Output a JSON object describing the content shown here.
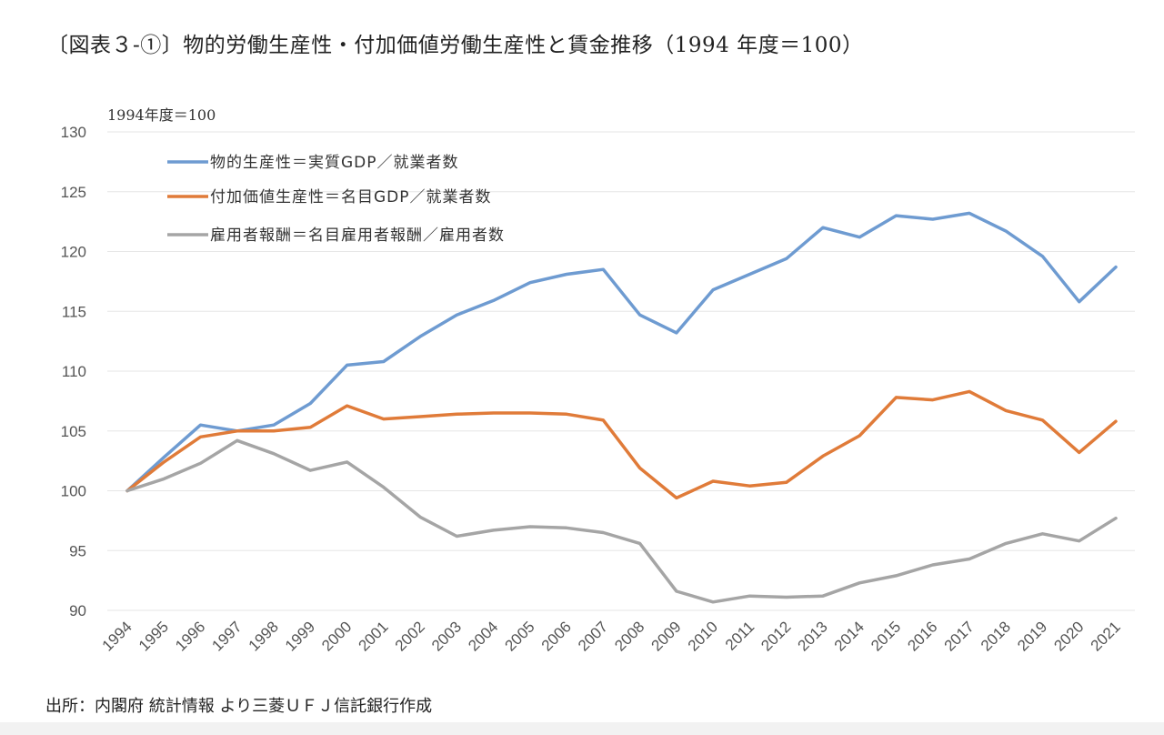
{
  "title": "〔図表３‐①〕物的労働生産性・付加価値労働生産性と賃金推移（1994 年度＝100）",
  "source": "出所：内閣府 統計情報 より三菱ＵＦＪ信託銀行作成",
  "chart_data": {
    "type": "line",
    "unit_label": "1994年度＝100",
    "ylim": [
      90,
      130
    ],
    "yticks": [
      90,
      95,
      100,
      105,
      110,
      115,
      120,
      125,
      130
    ],
    "grid": true,
    "legend_placement": "top-left",
    "x": [
      "1994",
      "1995",
      "1996",
      "1997",
      "1998",
      "1999",
      "2000",
      "2001",
      "2002",
      "2003",
      "2004",
      "2005",
      "2006",
      "2007",
      "2008",
      "2009",
      "2010",
      "2011",
      "2012",
      "2013",
      "2014",
      "2015",
      "2016",
      "2017",
      "2018",
      "2019",
      "2020",
      "2021"
    ],
    "series": [
      {
        "name": "物的生産性＝実質GDP／就業者数",
        "color": "#6e9bd1",
        "values": [
          100,
          102.8,
          105.5,
          105.0,
          105.5,
          107.3,
          110.5,
          110.8,
          112.9,
          114.7,
          115.9,
          117.4,
          118.1,
          118.5,
          114.7,
          113.2,
          116.8,
          118.1,
          119.4,
          122.0,
          121.2,
          123.0,
          122.7,
          123.2,
          121.7,
          119.6,
          115.8,
          118.7
        ]
      },
      {
        "name": "付加価値生産性＝名目GDP／就業者数",
        "color": "#e07b39",
        "values": [
          100,
          102.4,
          104.5,
          105.0,
          105.0,
          105.3,
          107.1,
          106.0,
          106.2,
          106.4,
          106.5,
          106.5,
          106.4,
          105.9,
          101.9,
          99.4,
          100.8,
          100.4,
          100.7,
          102.9,
          104.6,
          107.8,
          107.6,
          108.3,
          106.7,
          105.9,
          103.2,
          105.8
        ]
      },
      {
        "name": "雇用者報酬＝名目雇用者報酬／雇用者数",
        "color": "#a5a5a5",
        "values": [
          100,
          101.0,
          102.3,
          104.2,
          103.1,
          101.7,
          102.4,
          100.3,
          97.8,
          96.2,
          96.7,
          97.0,
          96.9,
          96.5,
          95.6,
          91.6,
          90.7,
          91.2,
          91.1,
          91.2,
          92.3,
          92.9,
          93.8,
          94.3,
          95.6,
          96.4,
          95.8,
          97.7
        ]
      }
    ]
  }
}
